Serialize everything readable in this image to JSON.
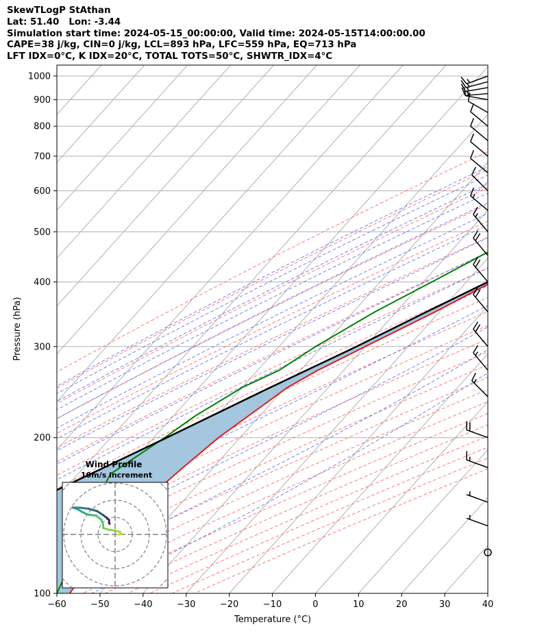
{
  "header": {
    "lines": [
      "SkewTLogP StAthan",
      "Lat: 51.40   Lon: -3.44",
      "Simulation start time: 2024-05-15_00:00:00, Valid time: 2024-05-15T14:00:00.00",
      "CAPE=38 j/kg, CIN=0 j/kg, LCL=893 hPa, LFC=559 hPa, EQ=713 hPa",
      "LFT IDX=0°C, K IDX=20°C, TOTAL TOTS=50°C, SHWTR_IDX=4°C"
    ]
  },
  "colors": {
    "temperature": "#e31a1c",
    "dewpoint": "#008000",
    "parcel": "#000000",
    "cape_fill": "#a4c6df",
    "dry_adiabats": "#ff6a6a",
    "moist_adiabats": "#5a6cf0",
    "mixing_ratio": "#9a40c8",
    "isotherms": "#b0b0b0",
    "wind_profile": [
      "#3a0f5a",
      "#2a8a8a",
      "#4cc870",
      "#c8e020"
    ]
  },
  "chart_data": [
    {
      "type": "line",
      "subtype": "skew-T log-P",
      "xlabel": "Temperature (°C)",
      "ylabel": "Pressure (hPa)",
      "xlim": [
        -60,
        40
      ],
      "ylim": [
        1050,
        100
      ],
      "y_scale": "log",
      "x_ticks": [
        -60,
        -50,
        -40,
        -30,
        -20,
        -10,
        0,
        10,
        20,
        30,
        40
      ],
      "y_ticks": [
        1000,
        900,
        800,
        700,
        600,
        500,
        400,
        300,
        200,
        100
      ],
      "grid": true,
      "series": [
        {
          "role": "temperature",
          "points": [
            {
              "p": 1000,
              "t": 17.5
            },
            {
              "p": 950,
              "t": 14.3
            },
            {
              "p": 900,
              "t": 10.9
            },
            {
              "p": 850,
              "t": 9.6
            },
            {
              "p": 800,
              "t": 7.0
            },
            {
              "p": 750,
              "t": 4.2
            },
            {
              "p": 700,
              "t": 1.6
            },
            {
              "p": 650,
              "t": -1.3
            },
            {
              "p": 600,
              "t": -4.0
            },
            {
              "p": 550,
              "t": -7.8
            },
            {
              "p": 500,
              "t": -12.5
            },
            {
              "p": 450,
              "t": -17.5
            },
            {
              "p": 400,
              "t": -24.0
            },
            {
              "p": 350,
              "t": -31.0
            },
            {
              "p": 300,
              "t": -40.0
            },
            {
              "p": 270,
              "t": -46.0
            },
            {
              "p": 250,
              "t": -49.5
            },
            {
              "p": 200,
              "t": -55.0
            },
            {
              "p": 175,
              "t": -57.0
            },
            {
              "p": 150,
              "t": -59.0
            },
            {
              "p": 135,
              "t": -58.5
            },
            {
              "p": 120,
              "t": -58.5
            },
            {
              "p": 110,
              "t": -58.0
            },
            {
              "p": 100,
              "t": -57.0
            }
          ]
        },
        {
          "role": "dewpoint",
          "points": [
            {
              "p": 1000,
              "t": 10.7
            },
            {
              "p": 950,
              "t": 10.6
            },
            {
              "p": 900,
              "t": 8.6
            },
            {
              "p": 850,
              "t": 3.2
            },
            {
              "p": 800,
              "t": -3.0
            },
            {
              "p": 700,
              "t": -10.0
            },
            {
              "p": 650,
              "t": -15.5
            },
            {
              "p": 600,
              "t": -19.5
            },
            {
              "p": 550,
              "t": -22.5
            },
            {
              "p": 500,
              "t": -26.5
            },
            {
              "p": 450,
              "t": -32.0
            },
            {
              "p": 400,
              "t": -38.0
            },
            {
              "p": 350,
              "t": -45.0
            },
            {
              "p": 300,
              "t": -51.5
            },
            {
              "p": 270,
              "t": -55.0
            },
            {
              "p": 250,
              "t": -60.0
            },
            {
              "p": 220,
              "t": -65.0
            },
            {
              "p": 200,
              "t": -67.5
            },
            {
              "p": 170,
              "t": -72.5
            },
            {
              "p": 150,
              "t": -70.0
            },
            {
              "p": 130,
              "t": -66.0
            },
            {
              "p": 100,
              "t": -60.0
            }
          ]
        },
        {
          "role": "parcel",
          "points": [
            {
              "p": 1000,
              "t": 17.5
            },
            {
              "p": 893,
              "t": 11.2
            },
            {
              "p": 800,
              "t": 7.6
            },
            {
              "p": 700,
              "t": 2.2
            },
            {
              "p": 600,
              "t": -5.0
            },
            {
              "p": 500,
              "t": -13.5
            },
            {
              "p": 450,
              "t": -19.0
            },
            {
              "p": 400,
              "t": -25.0
            },
            {
              "p": 350,
              "t": -33.0
            },
            {
              "p": 300,
              "t": -42.0
            },
            {
              "p": 250,
              "t": -53.5
            },
            {
              "p": 200,
              "t": -67.0
            },
            {
              "p": 150,
              "t": -85.0
            },
            {
              "p": 100,
              "t": -112.0
            }
          ]
        }
      ],
      "wind_barbs": [
        {
          "p": 1000,
          "speed_kt": 15,
          "dir": 250
        },
        {
          "p": 975,
          "speed_kt": 15,
          "dir": 255
        },
        {
          "p": 950,
          "speed_kt": 15,
          "dir": 260
        },
        {
          "p": 925,
          "speed_kt": 15,
          "dir": 265
        },
        {
          "p": 900,
          "speed_kt": 15,
          "dir": 280
        },
        {
          "p": 850,
          "speed_kt": 10,
          "dir": 300
        },
        {
          "p": 800,
          "speed_kt": 10,
          "dir": 310
        },
        {
          "p": 750,
          "speed_kt": 10,
          "dir": 310
        },
        {
          "p": 700,
          "speed_kt": 10,
          "dir": 310
        },
        {
          "p": 650,
          "speed_kt": 10,
          "dir": 310
        },
        {
          "p": 600,
          "speed_kt": 10,
          "dir": 315
        },
        {
          "p": 550,
          "speed_kt": 15,
          "dir": 310
        },
        {
          "p": 500,
          "speed_kt": 15,
          "dir": 320
        },
        {
          "p": 450,
          "speed_kt": 20,
          "dir": 320
        },
        {
          "p": 400,
          "speed_kt": 20,
          "dir": 320
        },
        {
          "p": 350,
          "speed_kt": 20,
          "dir": 320
        },
        {
          "p": 300,
          "speed_kt": 20,
          "dir": 320
        },
        {
          "p": 270,
          "speed_kt": 15,
          "dir": 320
        },
        {
          "p": 240,
          "speed_kt": 15,
          "dir": 315
        },
        {
          "p": 200,
          "speed_kt": 20,
          "dir": 290
        },
        {
          "p": 175,
          "speed_kt": 15,
          "dir": 290
        },
        {
          "p": 150,
          "speed_kt": 5,
          "dir": 290
        },
        {
          "p": 135,
          "speed_kt": 5,
          "dir": 290
        },
        {
          "p": 120,
          "speed_kt": 0,
          "dir": 0
        }
      ]
    },
    {
      "type": "line",
      "subtype": "hodograph",
      "title": "Wind Profile",
      "subtitle": "10m/s increment",
      "ring_step_ms": 10,
      "rings": 3,
      "points": [
        {
          "u": 2.0,
          "v": -0.2
        },
        {
          "u": 3.5,
          "v": 0.5
        },
        {
          "u": 2.8,
          "v": 1.5
        },
        {
          "u": 0.0,
          "v": 2.2
        },
        {
          "u": -4.0,
          "v": 2.8
        },
        {
          "u": -7.0,
          "v": 3.8
        },
        {
          "u": -7.0,
          "v": 6.0
        },
        {
          "u": -8.0,
          "v": 8.5
        },
        {
          "u": -11.0,
          "v": 11.0
        },
        {
          "u": -14.0,
          "v": 11.3
        },
        {
          "u": -16.5,
          "v": 11.8
        },
        {
          "u": -19.0,
          "v": 13.0
        },
        {
          "u": -22.0,
          "v": 14.8
        },
        {
          "u": -24.8,
          "v": 15.7
        },
        {
          "u": -20.5,
          "v": 15.6
        },
        {
          "u": -15.5,
          "v": 15.0
        },
        {
          "u": -10.5,
          "v": 13.6
        },
        {
          "u": -7.0,
          "v": 11.3
        },
        {
          "u": -5.0,
          "v": 9.8
        },
        {
          "u": -3.5,
          "v": 8.4
        },
        {
          "u": -3.5,
          "v": 6.7
        },
        {
          "u": -3.2,
          "v": 6.2
        }
      ]
    }
  ]
}
